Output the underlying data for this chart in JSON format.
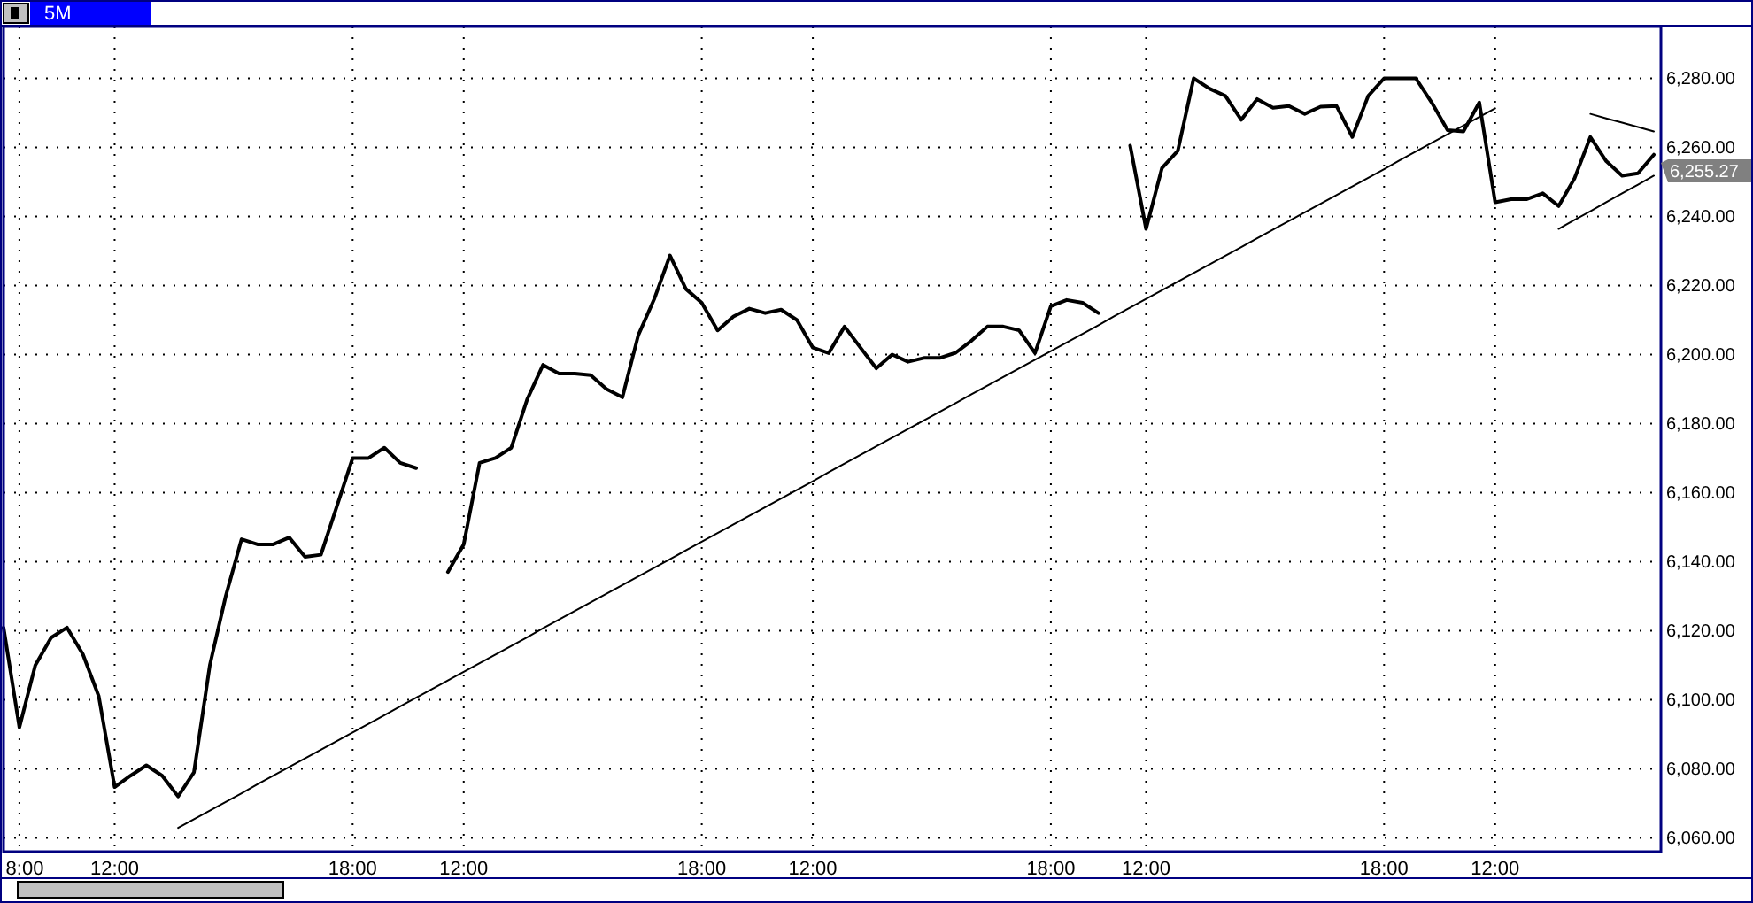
{
  "chart_data": {
    "type": "line",
    "title": "5M",
    "grid": true,
    "line_style": "solid",
    "ylim": [
      6056,
      6295
    ],
    "categories": [
      null,
      "8:00",
      null,
      null,
      null,
      null,
      null,
      "12:00",
      null,
      null,
      null,
      null,
      null,
      null,
      null,
      null,
      null,
      null,
      null,
      null,
      null,
      null,
      "18:00",
      null,
      null,
      null,
      null,
      null,
      null,
      "12:00",
      null,
      null,
      null,
      null,
      null,
      null,
      null,
      null,
      null,
      null,
      null,
      null,
      null,
      null,
      "18:00",
      null,
      null,
      null,
      null,
      null,
      null,
      "12:00",
      null,
      null,
      null,
      null,
      null,
      null,
      null,
      null,
      null,
      null,
      null,
      null,
      null,
      null,
      "18:00",
      null,
      null,
      null,
      null,
      null,
      "12:00",
      null,
      null,
      null,
      null,
      null,
      null,
      null,
      null,
      null,
      null,
      null,
      null,
      null,
      null,
      "18:00",
      null,
      null,
      null,
      null,
      null,
      null,
      "12:00",
      null,
      null,
      null,
      null,
      null,
      null,
      null,
      null,
      null,
      null
    ],
    "yticks": [
      {
        "value": 6060,
        "label": "6,060.00"
      },
      {
        "value": 6080,
        "label": "6,080.00"
      },
      {
        "value": 6100,
        "label": "6,100.00"
      },
      {
        "value": 6120,
        "label": "6,120.00"
      },
      {
        "value": 6140,
        "label": "6,140.00"
      },
      {
        "value": 6160,
        "label": "6,160.00"
      },
      {
        "value": 6180,
        "label": "6,180.00"
      },
      {
        "value": 6200,
        "label": "6,200.00"
      },
      {
        "value": 6220,
        "label": "6,220.00"
      },
      {
        "value": 6240,
        "label": "6,240.00"
      },
      {
        "value": 6260,
        "label": "6,260.00"
      },
      {
        "value": 6280,
        "label": "6,280.00"
      }
    ],
    "annotations": [
      "6,255.27"
    ],
    "series": [
      {
        "color": "#000000",
        "values": [
          6120.9,
          6092,
          6110,
          6118,
          6120.9,
          6113.2,
          6101,
          6074.7,
          6078,
          6081,
          6078,
          6072,
          6079,
          6110,
          6130,
          6146.5,
          6145,
          6145,
          6147,
          6141.4,
          6142,
          6156,
          6170,
          6170,
          6173,
          6168.6,
          6167.1,
          null,
          6137,
          6145,
          6168.6,
          6170,
          6173,
          6187,
          6197,
          6194.5,
          6194.5,
          6194,
          6190,
          6187.6,
          6205.6,
          6216,
          6228.7,
          6219,
          6215,
          6207,
          6211,
          6213.3,
          6212,
          6213,
          6210,
          6202,
          6200.4,
          6208.1,
          6202,
          6196,
          6200,
          6197.9,
          6199,
          6199,
          6200.5,
          6204,
          6208.1,
          6208.1,
          6207,
          6200.4,
          6214,
          6215.8,
          6215,
          6212,
          null,
          6260.5,
          6236.4,
          6254,
          6259,
          6280,
          6277,
          6274.9,
          6268,
          6274,
          6271.5,
          6272,
          6269.7,
          6271.8,
          6272,
          6263,
          6274.9,
          6280,
          6280,
          6280,
          6273,
          6265,
          6264.6,
          6273,
          6244.1,
          6245,
          6245,
          6246.7,
          6243,
          6251,
          6263,
          6256,
          6251.8,
          6252.5,
          6257.9
        ]
      },
      {
        "type": "line",
        "color": "#000000",
        "values": [
          null,
          null,
          null,
          null,
          null,
          null,
          null,
          null,
          null,
          null,
          null,
          6062.9,
          6065.4,
          6067.9,
          6070.4,
          6072.9,
          6075.5,
          6078.0,
          6080.5,
          6083.0,
          6085.5,
          6088.0,
          6090.5,
          6093.0,
          6095.5,
          6098.1,
          6100.6,
          6103.1,
          6105.6,
          6108.1,
          6110.6,
          6113.1,
          6115.6,
          6118.1,
          6120.7,
          6123.2,
          6125.7,
          6128.2,
          6130.7,
          6133.2,
          6135.7,
          6138.2,
          6140.7,
          6143.3,
          6145.8,
          6148.3,
          6150.8,
          6153.3,
          6155.8,
          6158.3,
          6160.8,
          6163.3,
          6165.9,
          6168.4,
          6170.9,
          6173.4,
          6175.9,
          6178.4,
          6180.9,
          6183.4,
          6185.9,
          6188.5,
          6191.0,
          6193.5,
          6196.0,
          6198.5,
          6201.0,
          6203.5,
          6206.0,
          6208.5,
          6211.1,
          6213.6,
          6216.1,
          6218.6,
          6221.1,
          6223.6,
          6226.1,
          6228.6,
          6231.1,
          6233.7,
          6236.2,
          6238.7,
          6241.2,
          6243.7,
          6246.2,
          6248.7,
          6251.2,
          6253.7,
          6256.3,
          6258.8,
          6261.3,
          6263.8,
          6266.3,
          6268.8,
          6271.3,
          null,
          null,
          null,
          null,
          null,
          null,
          null,
          null,
          null,
          null
        ]
      },
      {
        "type": "line",
        "color": "#000000",
        "values": [
          null,
          null,
          null,
          null,
          null,
          null,
          null,
          null,
          null,
          null,
          null,
          null,
          null,
          null,
          null,
          null,
          null,
          null,
          null,
          null,
          null,
          null,
          null,
          null,
          null,
          null,
          null,
          null,
          null,
          null,
          null,
          null,
          null,
          null,
          null,
          null,
          null,
          null,
          null,
          null,
          null,
          null,
          null,
          null,
          null,
          null,
          null,
          null,
          null,
          null,
          null,
          null,
          null,
          null,
          null,
          null,
          null,
          null,
          null,
          null,
          null,
          null,
          null,
          null,
          null,
          null,
          null,
          null,
          null,
          null,
          null,
          null,
          null,
          null,
          null,
          null,
          null,
          null,
          null,
          null,
          null,
          null,
          null,
          null,
          null,
          null,
          null,
          null,
          null,
          null,
          null,
          null,
          null,
          null,
          null,
          null,
          null,
          null,
          6236.4,
          6239.0,
          6241.5,
          6244.1,
          6246.7,
          6249.2,
          6251.8
        ]
      },
      {
        "type": "line",
        "color": "#000000",
        "values": [
          null,
          null,
          null,
          null,
          null,
          null,
          null,
          null,
          null,
          null,
          null,
          null,
          null,
          null,
          null,
          null,
          null,
          null,
          null,
          null,
          null,
          null,
          null,
          null,
          null,
          null,
          null,
          null,
          null,
          null,
          null,
          null,
          null,
          null,
          null,
          null,
          null,
          null,
          null,
          null,
          null,
          null,
          null,
          null,
          null,
          null,
          null,
          null,
          null,
          null,
          null,
          null,
          null,
          null,
          null,
          null,
          null,
          null,
          null,
          null,
          null,
          null,
          null,
          null,
          null,
          null,
          null,
          null,
          null,
          null,
          null,
          null,
          null,
          null,
          null,
          null,
          null,
          null,
          null,
          null,
          null,
          null,
          null,
          null,
          null,
          null,
          null,
          null,
          null,
          null,
          null,
          null,
          null,
          null,
          null,
          null,
          null,
          null,
          null,
          null,
          6269.7,
          6268.4,
          6267.2,
          6265.9,
          6264.6
        ]
      }
    ]
  }
}
